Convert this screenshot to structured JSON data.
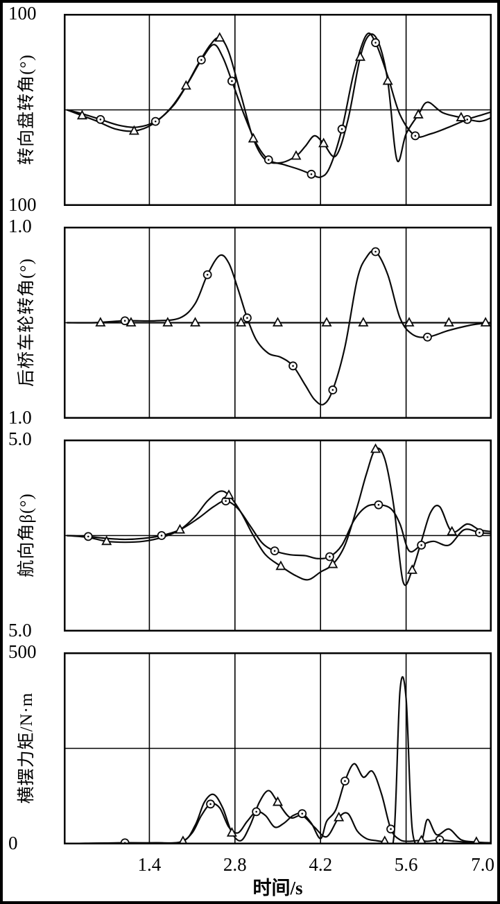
{
  "chart_data": {
    "type": "line",
    "xlabel": "时间/s",
    "x_range": [
      0,
      7
    ],
    "xticklabels": [
      "1.4",
      "2.8",
      "4.2",
      "5.6",
      "7.0"
    ],
    "grid": true,
    "legend": "none",
    "panels": [
      {
        "name": "steering-wheel-angle",
        "ylabel": "转向盘转角(°)",
        "ytick_top": "100",
        "ytick_bottom": "100",
        "ylim": [
          -100,
          100
        ],
        "gridlines_x": [
          1.4,
          2.8,
          4.2,
          5.6
        ],
        "gridlines_y": [
          0
        ],
        "series": [
          {
            "name": "series-circle",
            "marker": "circle",
            "marker_every": 3,
            "marker_offset": 2,
            "x": [
              0.05,
              0.3,
              0.6,
              0.9,
              1.2,
              1.5,
              1.8,
              2.05,
              2.25,
              2.45,
              2.6,
              2.75,
              2.95,
              3.15,
              3.35,
              3.6,
              3.85,
              4.05,
              4.2,
              4.35,
              4.55,
              4.75,
              4.95,
              5.1,
              5.3,
              5.5,
              5.75,
              6.0,
              6.3,
              6.6,
              6.85,
              7.0
            ],
            "y": [
              0,
              -4,
              -10,
              -16,
              -18,
              -12,
              5,
              30,
              52,
              68,
              55,
              30,
              -5,
              -35,
              -52,
              -57,
              -62,
              -67,
              -70,
              -60,
              -20,
              40,
              78,
              70,
              35,
              -5,
              -27,
              -25,
              -18,
              -10,
              -5,
              -2
            ]
          },
          {
            "name": "series-triangle",
            "marker": "triangle",
            "marker_every": 3,
            "marker_offset": 1,
            "x": [
              0.05,
              0.3,
              0.55,
              0.85,
              1.15,
              1.45,
              1.75,
              2.0,
              2.2,
              2.4,
              2.55,
              2.7,
              2.9,
              3.1,
              3.3,
              3.55,
              3.8,
              3.95,
              4.1,
              4.25,
              4.45,
              4.65,
              4.85,
              5.0,
              5.15,
              5.3,
              5.45,
              5.6,
              5.8,
              5.95,
              6.2,
              6.5,
              6.8,
              7.0
            ],
            "y": [
              0,
              -6,
              -12,
              -20,
              -22,
              -15,
              2,
              25,
              48,
              68,
              75,
              60,
              15,
              -30,
              -52,
              -55,
              -48,
              -38,
              -27,
              -35,
              -48,
              -10,
              55,
              78,
              70,
              30,
              -52,
              -25,
              -5,
              8,
              -3,
              -8,
              -12,
              -8
            ]
          }
        ]
      },
      {
        "name": "rear-axle-wheel-angle",
        "ylabel": "后桥车轮转角(°)",
        "ytick_top": "1.0",
        "ytick_bottom": "1.0",
        "ylim": [
          -1.0,
          1.0
        ],
        "gridlines_x": [
          1.4,
          2.8,
          4.2,
          5.6
        ],
        "gridlines_y": [
          0
        ],
        "series": [
          {
            "name": "series-circle",
            "marker": "circle",
            "marker_every": 4,
            "marker_offset": 2,
            "x": [
              0.05,
              0.5,
              1.0,
              1.5,
              1.9,
              2.15,
              2.35,
              2.55,
              2.7,
              2.85,
              3.0,
              3.15,
              3.35,
              3.55,
              3.75,
              3.95,
              4.1,
              4.25,
              4.4,
              4.6,
              4.8,
              4.95,
              5.1,
              5.3,
              5.5,
              5.7,
              5.95,
              6.3,
              6.7,
              7.0
            ],
            "y": [
              0,
              0,
              0.02,
              0.02,
              0.05,
              0.2,
              0.5,
              0.7,
              0.62,
              0.35,
              0.05,
              -0.18,
              -0.32,
              -0.36,
              -0.45,
              -0.65,
              -0.8,
              -0.85,
              -0.7,
              -0.25,
              0.45,
              0.68,
              0.74,
              0.5,
              0.05,
              -0.12,
              -0.15,
              -0.08,
              -0.02,
              0
            ]
          },
          {
            "name": "series-triangle",
            "marker": "triangle",
            "marker_every": 1,
            "marker_offset": 1,
            "x": [
              0.05,
              0.6,
              1.1,
              1.7,
              2.15,
              2.9,
              3.5,
              4.3,
              4.9,
              5.65,
              6.3,
              6.9,
              7.0
            ],
            "y": [
              0,
              0,
              0,
              0,
              0,
              0,
              0,
              0,
              0,
              0,
              0,
              0,
              0
            ]
          }
        ]
      },
      {
        "name": "heading-angle-beta",
        "ylabel": "航向角β(°)",
        "ytick_top": "5.0",
        "ytick_bottom": "5.0",
        "ylim": [
          -5.0,
          5.0
        ],
        "gridlines_x": [
          1.4,
          2.8,
          4.2,
          5.6
        ],
        "gridlines_y": [
          0
        ],
        "series": [
          {
            "name": "series-circle",
            "marker": "circle",
            "marker_every": 4,
            "marker_offset": 1,
            "x": [
              0.05,
              0.4,
              0.7,
              1.0,
              1.3,
              1.6,
              1.9,
              2.2,
              2.45,
              2.65,
              2.85,
              3.05,
              3.25,
              3.45,
              3.7,
              3.95,
              4.15,
              4.35,
              4.55,
              4.75,
              4.95,
              5.15,
              5.35,
              5.5,
              5.65,
              5.85,
              6.05,
              6.3,
              6.55,
              6.8,
              7.0
            ],
            "y": [
              0,
              -0.05,
              -0.15,
              -0.2,
              -0.15,
              0,
              0.3,
              0.9,
              1.5,
              1.8,
              1.4,
              0.5,
              -0.4,
              -0.8,
              -1.0,
              -1.05,
              -1.2,
              -1.1,
              -0.5,
              0.8,
              1.5,
              1.6,
              1.4,
              0.6,
              -0.8,
              -0.5,
              -0.3,
              -0.5,
              0.3,
              0.15,
              0.1
            ]
          },
          {
            "name": "series-triangle",
            "marker": "triangle",
            "marker_every": 4,
            "marker_offset": 2,
            "x": [
              0.05,
              0.4,
              0.7,
              1.0,
              1.3,
              1.6,
              1.9,
              2.15,
              2.35,
              2.55,
              2.7,
              2.9,
              3.1,
              3.3,
              3.55,
              3.8,
              4.0,
              4.2,
              4.4,
              4.6,
              4.8,
              4.95,
              5.1,
              5.25,
              5.4,
              5.55,
              5.7,
              5.85,
              6.0,
              6.15,
              6.35,
              6.6,
              6.8,
              7.0
            ],
            "y": [
              0,
              -0.1,
              -0.3,
              -0.35,
              -0.3,
              -0.1,
              0.3,
              1.0,
              1.8,
              2.3,
              2.1,
              1.2,
              0,
              -1.0,
              -1.6,
              -2.1,
              -2.3,
              -1.9,
              -1.5,
              -0.5,
              1.5,
              3.2,
              4.5,
              4.0,
              1.5,
              -2.4,
              -1.8,
              -0.3,
              1.2,
              1.5,
              0.2,
              0.6,
              0.3,
              0.2
            ]
          }
        ]
      },
      {
        "name": "yaw-moment",
        "ylabel": "横摆力矩/N·m",
        "ytick_top": "500",
        "ytick_bottom": "0",
        "ylim": [
          0,
          500
        ],
        "gridlines_x": [
          1.4,
          2.8,
          4.2,
          5.6
        ],
        "gridlines_y": [
          250
        ],
        "series": [
          {
            "name": "series-circle",
            "marker": "circle",
            "marker_every": 5,
            "marker_offset": 2,
            "x": [
              0.05,
              0.5,
              1.0,
              1.5,
              1.9,
              2.1,
              2.25,
              2.4,
              2.55,
              2.7,
              2.85,
              3.0,
              3.15,
              3.3,
              3.45,
              3.6,
              3.75,
              3.9,
              4.05,
              4.2,
              4.3,
              4.45,
              4.6,
              4.75,
              4.9,
              5.05,
              5.2,
              5.35,
              5.5,
              5.65,
              5.8,
              5.95,
              6.15,
              6.4,
              6.7,
              7.0
            ],
            "y": [
              2,
              3,
              4,
              4,
              6,
              30,
              75,
              105,
              95,
              45,
              30,
              60,
              85,
              75,
              45,
              55,
              75,
              80,
              55,
              15,
              60,
              90,
              165,
              210,
              175,
              190,
              130,
              40,
              12,
              8,
              10,
              8,
              12,
              8,
              5,
              3
            ]
          },
          {
            "name": "series-triangle",
            "marker": "triangle",
            "marker_every": 5,
            "marker_offset": 4,
            "x": [
              0.05,
              0.5,
              1.0,
              1.5,
              1.95,
              2.15,
              2.3,
              2.45,
              2.6,
              2.75,
              2.9,
              3.05,
              3.2,
              3.35,
              3.5,
              3.7,
              3.9,
              4.1,
              4.3,
              4.5,
              4.65,
              4.8,
              4.95,
              5.1,
              5.25,
              5.4,
              5.5,
              5.6,
              5.7,
              5.85,
              5.95,
              6.1,
              6.3,
              6.5,
              6.75,
              7.0
            ],
            "y": [
              2,
              3,
              4,
              4,
              8,
              50,
              110,
              130,
              95,
              30,
              10,
              50,
              110,
              140,
              110,
              70,
              75,
              45,
              20,
              70,
              80,
              35,
              15,
              10,
              8,
              20,
              400,
              380,
              40,
              10,
              65,
              25,
              40,
              12,
              6,
              4
            ]
          }
        ]
      }
    ]
  }
}
